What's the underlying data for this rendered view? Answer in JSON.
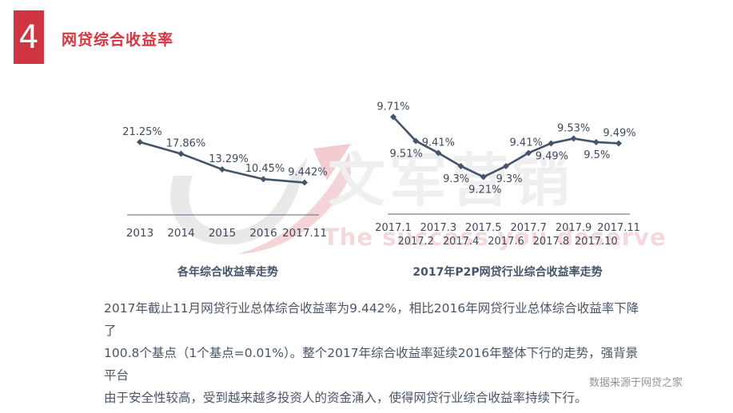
{
  "header": {
    "number": "4",
    "title": "网贷综合收益率"
  },
  "theme": {
    "accent_red": "#cf3540",
    "title_red": "#d23843",
    "line_color": "#44546a",
    "axis_color": "#5a6478",
    "label_color": "#3f4a5c",
    "text_color": "#4a5568",
    "source_color": "#939393"
  },
  "watermark": {
    "cn": "文军营销",
    "en": "The success you deserve",
    "logo_icon": "uj-swoosh-logo"
  },
  "chart_data": [
    {
      "type": "line",
      "title": "各年综合收益率走势",
      "categories": [
        "2013",
        "2014",
        "2015",
        "2016",
        "2017.11"
      ],
      "values": [
        21.25,
        17.86,
        13.29,
        10.45,
        9.442
      ],
      "labels": [
        "21.25%",
        "17.86%",
        "13.29%",
        "10.45%",
        "9.442%"
      ],
      "label_positions": [
        "above",
        "above",
        "above",
        "above",
        "above"
      ],
      "xlabel": "",
      "ylabel": "",
      "ylim": [
        0,
        30.1
      ],
      "grid": false,
      "legend": "none",
      "marker": "diamond",
      "line_color": "#44546a"
    },
    {
      "type": "line",
      "title": "2017年P2P网贷行业综合收益率走势",
      "categories": [
        "2017.1",
        "2017.2",
        "2017.3",
        "2017.4",
        "2017.5",
        "2017.6",
        "2017.7",
        "2017.8",
        "2017.9",
        "2017.10",
        "2017.11"
      ],
      "values": [
        9.71,
        9.51,
        9.41,
        9.3,
        9.21,
        9.3,
        9.41,
        9.49,
        9.53,
        9.5,
        9.49
      ],
      "labels": [
        "9.71%",
        "9.51%",
        "9.41%",
        "9.3%",
        "9.21%",
        "9.3%",
        "9.41%",
        "9.49%",
        "9.53%",
        "9.5%",
        "9.49%"
      ],
      "label_positions": [
        "above",
        "below",
        "above",
        "below",
        "below",
        "below",
        "above",
        "below",
        "above",
        "below",
        "above"
      ],
      "xlabel": "",
      "ylabel": "",
      "ylim": [
        8.9,
        9.886
      ],
      "grid": false,
      "legend": "none",
      "marker": "diamond",
      "line_color": "#44546a",
      "tick_layout": "staggered-two-rows"
    }
  ],
  "paragraph": {
    "lines": [
      "2017年截止11月网贷行业总体综合收益率为9.442%，相比2016年网贷行业总体综合收益率下降了",
      "100.8个基点（1个基点=0.01%）。整个2017年综合收益率延续2016年整体下行的走势，强背景平台",
      "由于安全性较高，受到越来越多投资人的资金涌入，使得网贷行业综合收益率持续下行。"
    ]
  },
  "source_note": "数据来源于网贷之家"
}
